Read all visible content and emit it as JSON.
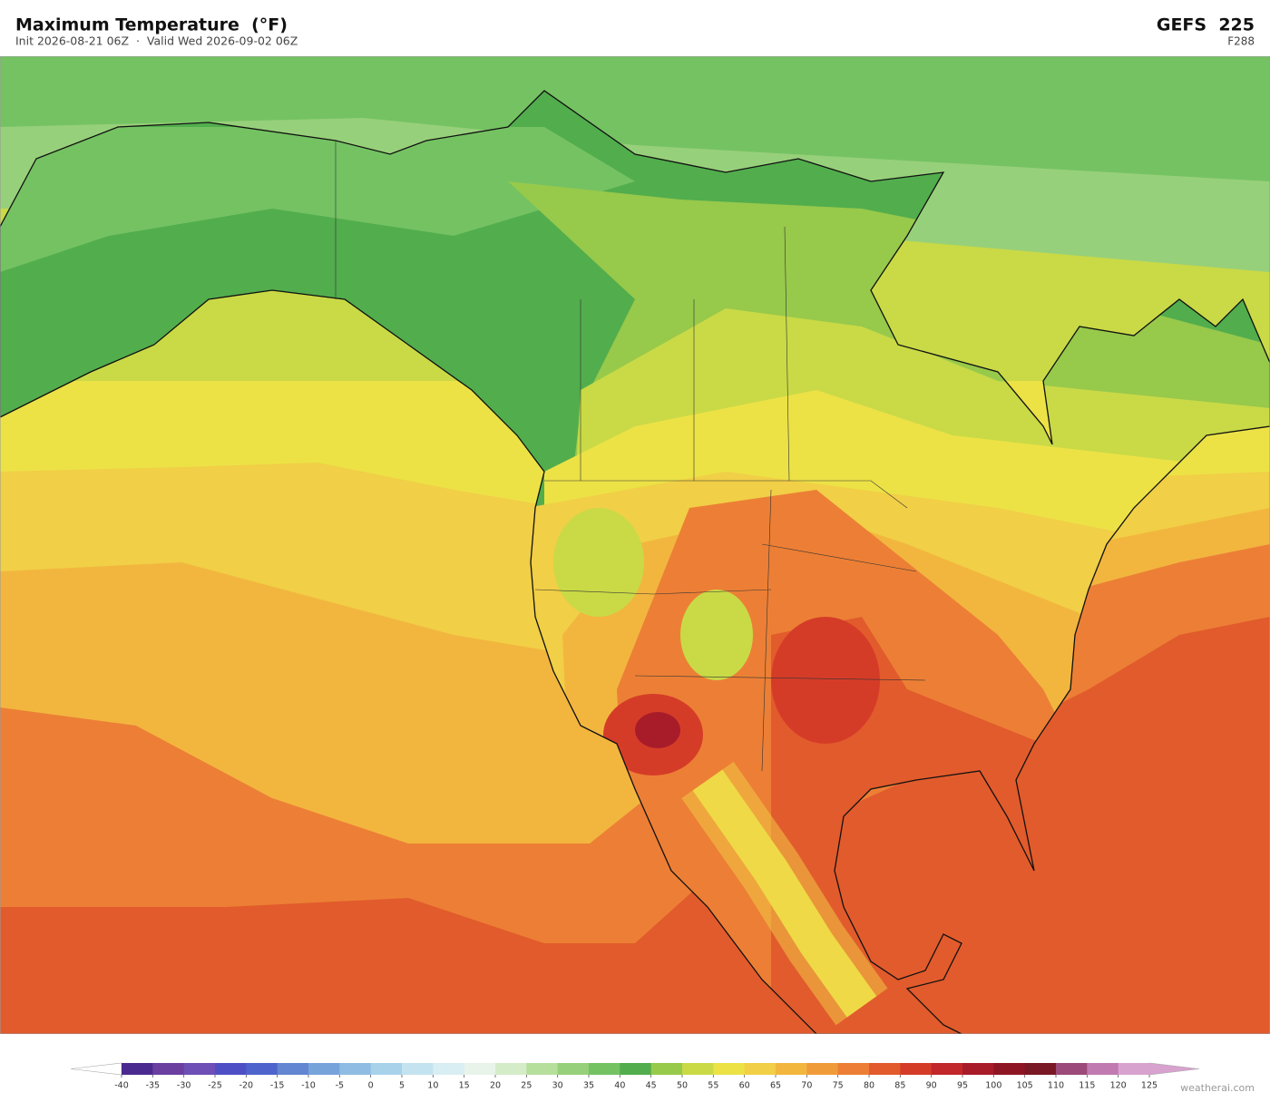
{
  "header": {
    "title": "Maximum Temperature  (°F)",
    "subtitle": "Init 2026-08-21 06Z  ·  Valid Wed 2026-09-02 06Z",
    "model": "GEFS  225",
    "forecast_hour": "F288"
  },
  "colorbar": {
    "ticks": [
      -40,
      -35,
      -30,
      -25,
      -20,
      -15,
      -10,
      -5,
      0,
      5,
      10,
      15,
      20,
      25,
      30,
      35,
      40,
      45,
      50,
      55,
      60,
      65,
      70,
      75,
      80,
      85,
      90,
      95,
      100,
      105,
      110,
      115,
      120,
      125
    ],
    "colors": [
      "#4b2a8f",
      "#6a3fa0",
      "#6e4fb5",
      "#4f4fc5",
      "#4e63cc",
      "#6286d2",
      "#77a3db",
      "#8fbce2",
      "#a8d2ea",
      "#c3e3f0",
      "#d9eef2",
      "#e8f4ea",
      "#d5ecc9",
      "#b7df9c",
      "#97d07a",
      "#75c263",
      "#52ad4d",
      "#97c94b",
      "#c9da46",
      "#ece246",
      "#f1cf46",
      "#f2b63f",
      "#f09b3a",
      "#ec7f35",
      "#e25b2c",
      "#d53c28",
      "#c2282a",
      "#a81c2a",
      "#8e1624",
      "#7a1826",
      "#9b4a7a",
      "#c07ab0",
      "#d8a2cf"
    ],
    "under_color": "#ffffff",
    "over_color": "#d8a2cf"
  },
  "footer": {
    "credit": "weatherai.com"
  }
}
